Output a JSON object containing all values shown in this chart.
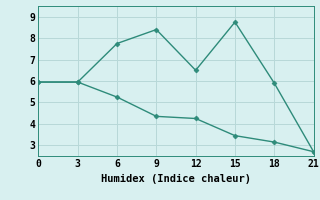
{
  "line1_x": [
    0,
    3,
    6,
    9,
    12,
    15,
    18,
    21
  ],
  "line1_y": [
    5.95,
    5.95,
    7.75,
    8.4,
    6.5,
    8.75,
    5.9,
    2.7
  ],
  "line2_x": [
    0,
    3,
    6,
    9,
    12,
    15,
    18,
    21
  ],
  "line2_y": [
    5.95,
    5.95,
    5.25,
    4.35,
    4.25,
    3.45,
    3.15,
    2.7
  ],
  "line_color": "#2e8b7a",
  "bg_color": "#d8f0f0",
  "grid_color": "#b8d8d8",
  "xlabel": "Humidex (Indice chaleur)",
  "xlim": [
    0,
    21
  ],
  "ylim": [
    2.5,
    9.5
  ],
  "xticks": [
    0,
    3,
    6,
    9,
    12,
    15,
    18,
    21
  ],
  "yticks": [
    3,
    4,
    5,
    6,
    7,
    8,
    9
  ],
  "marker": "D",
  "markersize": 2.5,
  "linewidth": 1.0,
  "xlabel_fontsize": 7.5,
  "tick_fontsize": 7
}
